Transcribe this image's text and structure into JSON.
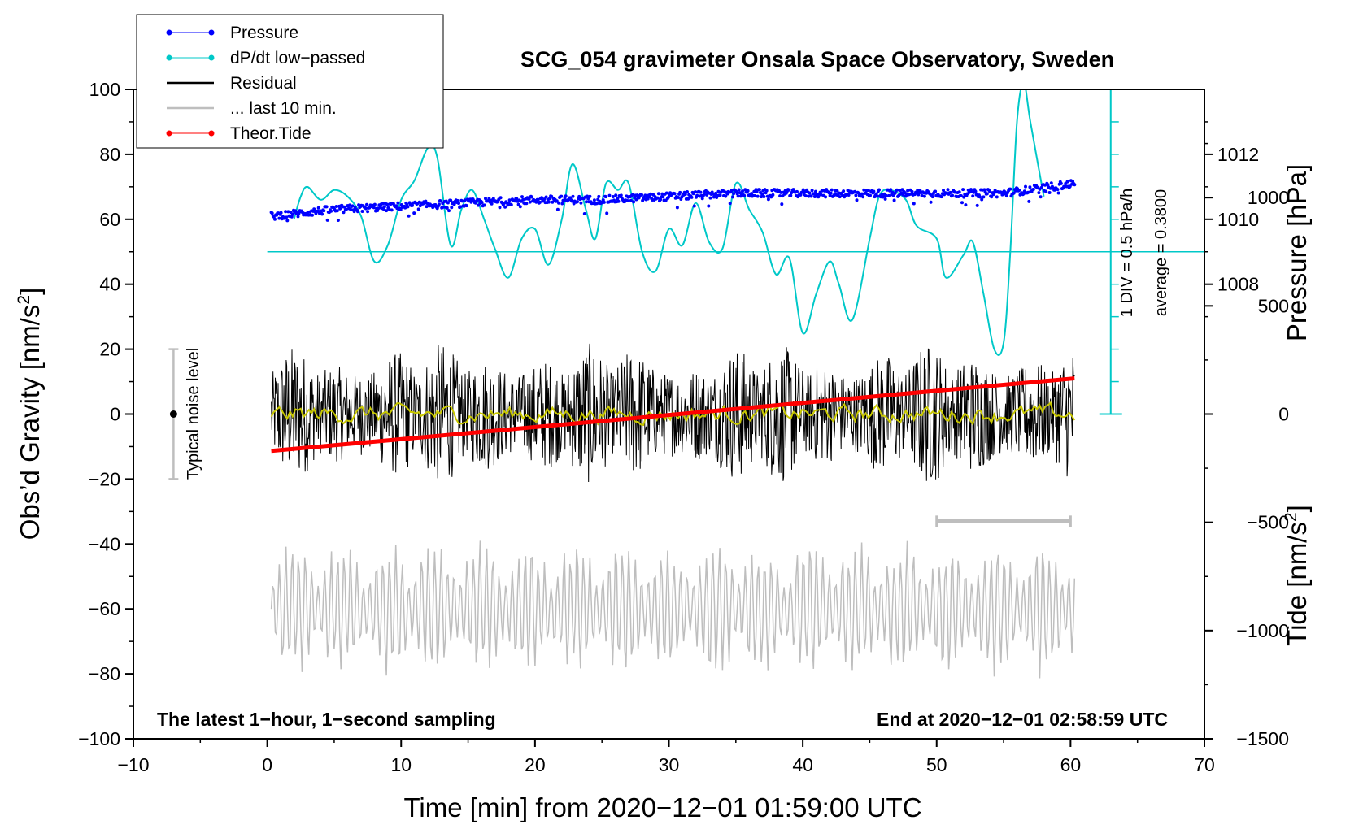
{
  "chart_data": {
    "type": "line",
    "title": "SCG_054 gravimeter Onsala Space Observatory, Sweden",
    "xlabel": "Time [min] from 2020−12−01 01:59:00 UTC",
    "ylabel": "Obs’d Gravity [nm/s²]",
    "ylabel_parts": [
      "Obs’d Gravity [nm/s",
      "2",
      "]"
    ],
    "xlim": [
      -10,
      70
    ],
    "ylim": [
      -100,
      100
    ],
    "xticks": [
      -10,
      0,
      10,
      20,
      30,
      40,
      50,
      60,
      70
    ],
    "xtick_labels": [
      "−10",
      "0",
      "10",
      "20",
      "30",
      "40",
      "50",
      "60",
      "70"
    ],
    "yticks": [
      -100,
      -80,
      -60,
      -40,
      -20,
      0,
      20,
      40,
      60,
      80,
      100
    ],
    "ytick_labels": [
      "−100",
      "−80",
      "−60",
      "−40",
      "−20",
      "0",
      "20",
      "40",
      "60",
      "80",
      "100"
    ],
    "pressure_axis": {
      "label_parts": [
        "Pressure [hPa]"
      ],
      "ticks": [
        1008,
        1010,
        1012
      ],
      "tick_labels": [
        "1008",
        "1010",
        "1012"
      ],
      "range": [
        1006,
        1014
      ],
      "maps_to_gravity": [
        20,
        100
      ]
    },
    "tide_axis": {
      "label_parts": [
        "Tide [nm/s",
        "2",
        "]"
      ],
      "ticks": [
        -1500,
        -1000,
        -500,
        0,
        500,
        1000
      ],
      "tick_labels": [
        "−1500",
        "−1000",
        "−500",
        "0",
        "500",
        "1000"
      ],
      "range": [
        -1500,
        1500
      ],
      "maps_to_gravity": [
        -100,
        100
      ]
    },
    "legend": {
      "position": "top-left",
      "entries": [
        {
          "label": "Pressure",
          "color": "#0000ff",
          "marker": true
        },
        {
          "label": "dP/dt low−passed",
          "color": "#00c8c8",
          "marker": true
        },
        {
          "label": "Residual",
          "color": "#000000",
          "marker": false
        },
        {
          "label": "... last 10 min.",
          "color": "#bebebe",
          "marker": false
        },
        {
          "label": "Theor.Tide",
          "color": "#ff0000",
          "marker": true
        }
      ]
    },
    "annotations": {
      "bottom_left": "The latest 1−hour, 1−second sampling",
      "bottom_right": "End at 2020−12−01 02:58:59 UTC",
      "noise_label": "Typical noise level",
      "dpdt_scale": "1 DIV = 0.5 hPa/h",
      "dpdt_average": "average = 0.3800"
    },
    "noise_bar": {
      "x": -7,
      "y": 0,
      "ymin": -20,
      "ymax": 20
    },
    "last10_bar": {
      "xmin": 50,
      "xmax": 60,
      "y": -33
    },
    "dpdt_axis": {
      "x": 63,
      "ymin": 0,
      "ymax": 100,
      "baseline": 50
    },
    "series": [
      {
        "name": "Pressure",
        "color": "#0000ff",
        "style": "points",
        "x": [
          0.3,
          5,
          10,
          15,
          20,
          25,
          30,
          35,
          40,
          45,
          50,
          53,
          55,
          60.3
        ],
        "y": [
          1010.1,
          1010.3,
          1010.4,
          1010.5,
          1010.6,
          1010.6,
          1010.7,
          1010.8,
          1010.8,
          1010.8,
          1010.8,
          1010.8,
          1010.8,
          1011.1
        ]
      },
      {
        "name": "dP/dt low−passed",
        "color": "#00c8c8",
        "style": "line",
        "x": [
          2,
          2.5,
          3,
          4,
          5,
          6,
          7,
          8,
          9,
          10,
          11,
          12,
          12.7,
          13.7,
          14.5,
          15.3,
          16.2,
          17,
          18,
          19,
          20,
          21,
          22,
          22.8,
          23.8,
          24.5,
          25.3,
          26.2,
          27,
          28,
          29,
          30,
          31,
          32,
          33,
          34,
          35,
          36,
          37,
          38,
          39,
          40,
          41,
          42,
          42.7,
          43.7,
          45,
          45.7,
          46.5,
          47.7,
          48.5,
          50,
          50.7,
          52,
          52.7,
          53.5,
          54.3,
          55,
          55.5,
          56,
          56.5,
          57,
          58
        ],
        "y": [
          60,
          67,
          70,
          66,
          69,
          67,
          61,
          47,
          52,
          66,
          72,
          82,
          79,
          52,
          63,
          69,
          60,
          51,
          42,
          54,
          57,
          46,
          60,
          77,
          63,
          54,
          71,
          69,
          71,
          50,
          44,
          57,
          52,
          65,
          53,
          51,
          71,
          63,
          56,
          43,
          48,
          25,
          37,
          47,
          40,
          29,
          54,
          67,
          69,
          66,
          58,
          54,
          42,
          49,
          53,
          37,
          20,
          22,
          50,
          90,
          102,
          90,
          67
        ]
      },
      {
        "name": "Theor.Tide",
        "color": "#ff0000",
        "style": "line",
        "x": [
          0.3,
          60.3
        ],
        "y": [
          -170,
          165
        ]
      },
      {
        "name": "Residual",
        "color": "#000000",
        "style": "noise",
        "x_range": [
          0.3,
          60.3
        ],
        "center": 0,
        "amplitude": 22
      },
      {
        "name": "Residual smoothed",
        "color": "#c8c800",
        "style": "noise",
        "x_range": [
          0.3,
          60.3
        ],
        "center": 0,
        "amplitude": 2
      },
      {
        "name": "... last 10 min.",
        "color": "#bebebe",
        "style": "noise",
        "x_range": [
          0.3,
          60.3
        ],
        "center": -60,
        "amplitude": 22
      }
    ]
  }
}
